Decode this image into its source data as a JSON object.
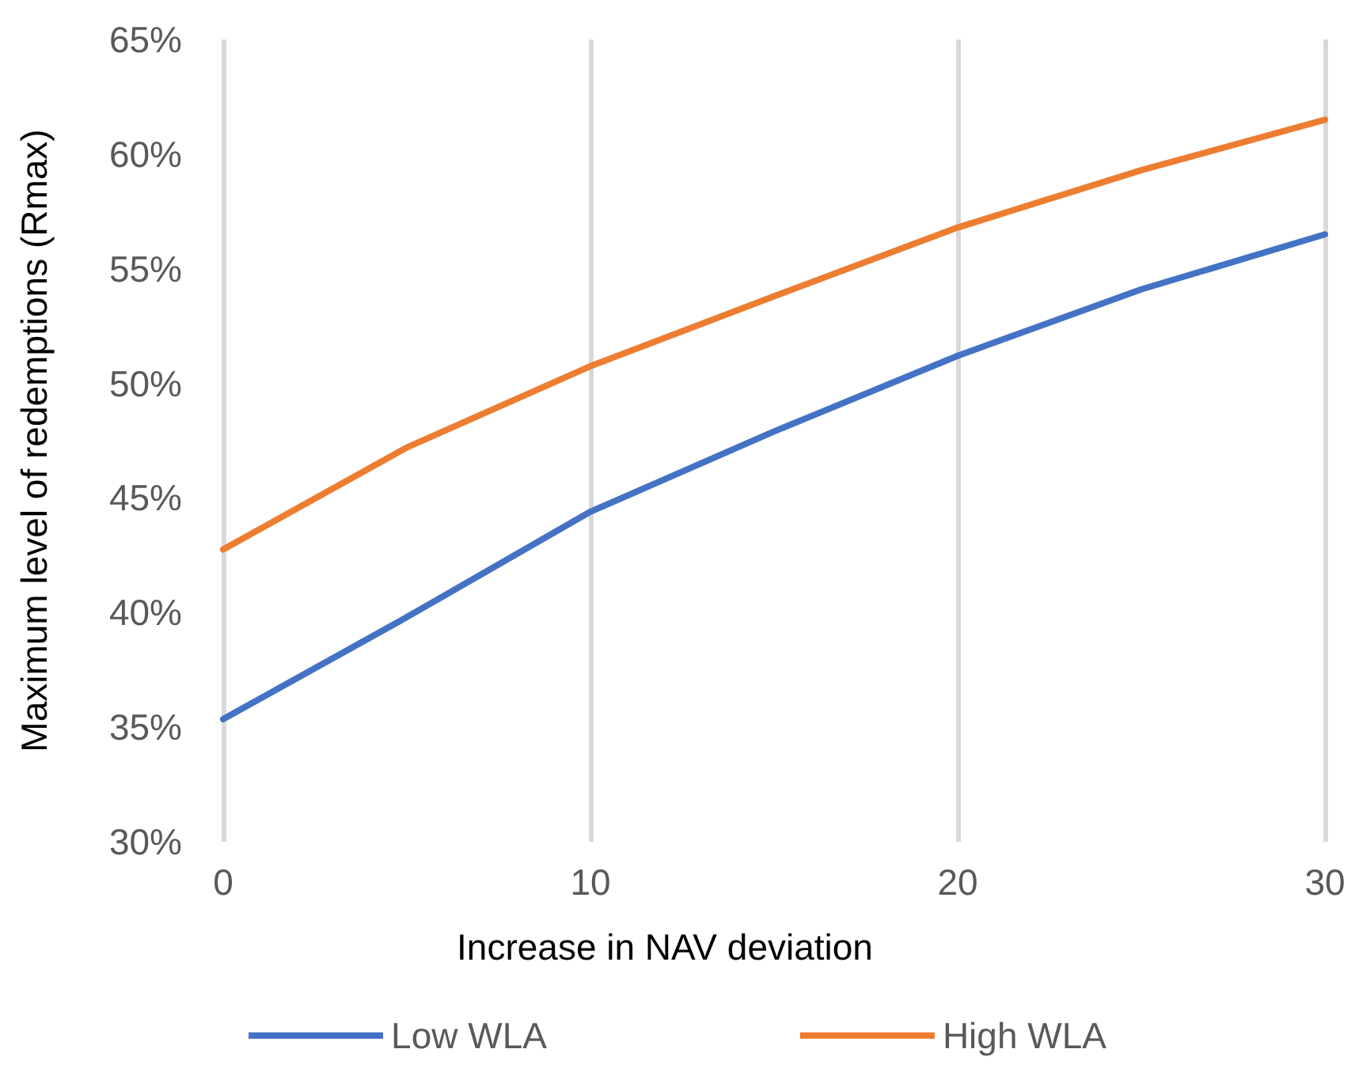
{
  "chart_data": {
    "type": "line",
    "xlabel": "Increase in NAV deviation",
    "ylabel": "Maximum level of redemptions (Rmax)",
    "x": [
      0,
      5,
      10,
      15,
      20,
      25,
      30
    ],
    "series": [
      {
        "name": "Low WLA",
        "color": "#4472c4",
        "values": [
          35.35,
          39.8,
          44.4,
          47.9,
          51.2,
          54.1,
          56.5
        ]
      },
      {
        "name": "High WLA",
        "color": "#ed7d31",
        "values": [
          42.75,
          47.2,
          50.75,
          53.8,
          56.8,
          59.3,
          61.5
        ]
      }
    ],
    "xlim": [
      0,
      30
    ],
    "xticks": [
      0,
      10,
      20,
      30
    ],
    "ylim": [
      30,
      65
    ],
    "yticks": [
      {
        "value": 30,
        "label": "30%"
      },
      {
        "value": 35,
        "label": "35%"
      },
      {
        "value": 40,
        "label": "40%"
      },
      {
        "value": 45,
        "label": "45%"
      },
      {
        "value": 50,
        "label": "50%"
      },
      {
        "value": 55,
        "label": "55%"
      },
      {
        "value": 60,
        "label": "60%"
      },
      {
        "value": 65,
        "label": "65%"
      }
    ],
    "grid": "x",
    "legend": "bottom",
    "marker": "none",
    "line_style": "solid"
  }
}
